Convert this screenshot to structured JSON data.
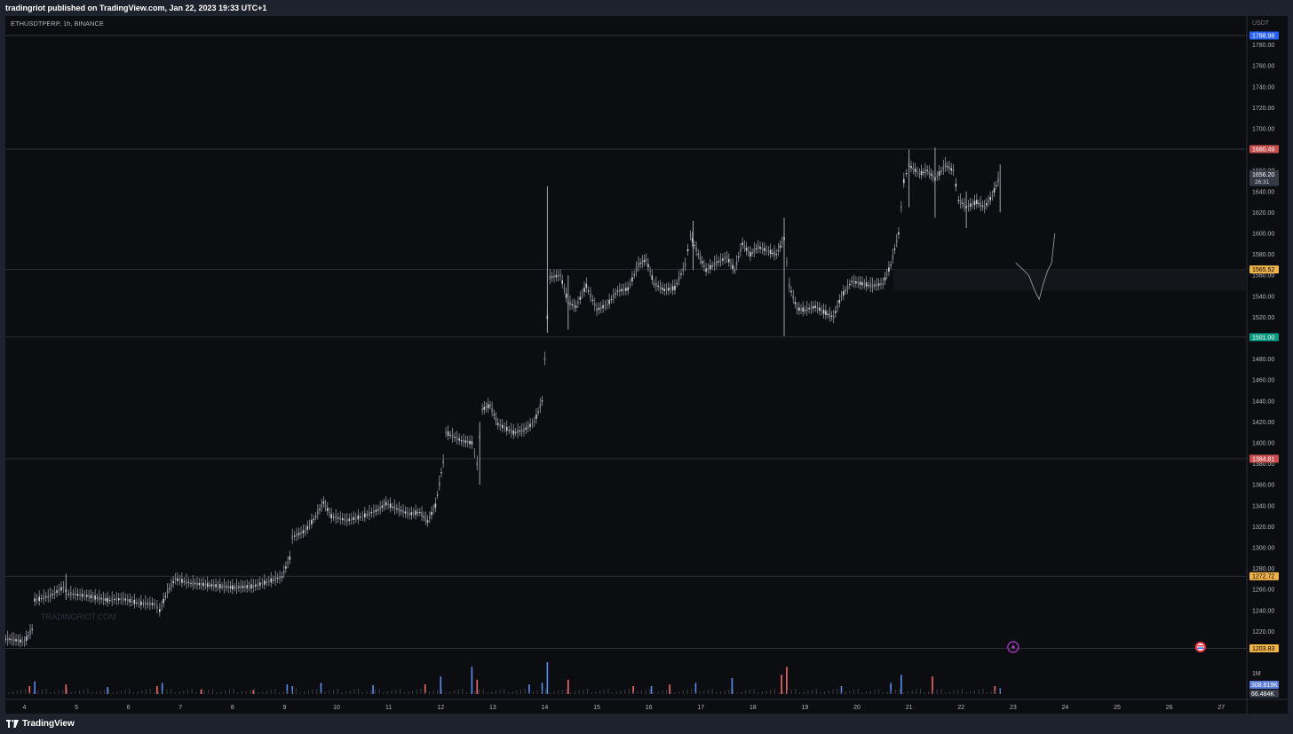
{
  "header": {
    "published_text": "tradingriot published on TradingView.com, Jan 22, 2023 19:33 UTC+1"
  },
  "footer": {
    "brand": "TradingView"
  },
  "chart_data": {
    "type": "candlestick",
    "symbol_label": "ETHUSDTPERP, 1h, BINANCE",
    "watermark": "TRADINGRIOT.COM",
    "currency": "USDT",
    "ylim": [
      1200,
      1800
    ],
    "y_ticks": [
      1220,
      1240,
      1260,
      1280,
      1300,
      1320,
      1340,
      1360,
      1380,
      1400,
      1420,
      1440,
      1460,
      1480,
      1500,
      1520,
      1540,
      1560,
      1580,
      1600,
      1620,
      1640,
      1660,
      1680,
      1700,
      1720,
      1740,
      1760,
      1780
    ],
    "x_ticks": [
      "4",
      "5",
      "6",
      "7",
      "8",
      "9",
      "10",
      "11",
      "12",
      "13",
      "14",
      "15",
      "16",
      "17",
      "18",
      "19",
      "20",
      "21",
      "22",
      "23",
      "24",
      "25",
      "26",
      "27"
    ],
    "x_range_days": [
      3.6,
      27.0
    ],
    "levels": [
      {
        "price": 1788.98,
        "label": "1788.98",
        "color": "#2962ff"
      },
      {
        "price": 1680.49,
        "label": "1680.49",
        "color": "#c94f4f"
      },
      {
        "price": 1565.52,
        "label": "1565.52",
        "color": "#f0b34a"
      },
      {
        "price": 1501.0,
        "label": "1501.00",
        "color": "#089981"
      },
      {
        "price": 1384.81,
        "label": "1384.81",
        "color": "#c94f4f"
      },
      {
        "price": 1272.72,
        "label": "1272.72",
        "color": "#f0b34a"
      },
      {
        "price": 1203.83,
        "label": "1203.83",
        "color": "#f0b34a"
      }
    ],
    "last_price": {
      "price": 1656.2,
      "label": "1656.20",
      "countdown": "26:31"
    },
    "volume": {
      "scale_label": "1M",
      "value_label": "308.619K",
      "ma_label": "66.484K"
    },
    "path_points": [
      [
        3.6,
        1213
      ],
      [
        3.8,
        1212
      ],
      [
        4.0,
        1210
      ],
      [
        4.15,
        1222
      ],
      [
        4.2,
        1250
      ],
      [
        4.5,
        1254
      ],
      [
        4.75,
        1262
      ],
      [
        4.85,
        1256
      ],
      [
        5.2,
        1254
      ],
      [
        5.6,
        1250
      ],
      [
        5.9,
        1251
      ],
      [
        6.2,
        1247
      ],
      [
        6.5,
        1246
      ],
      [
        6.6,
        1240
      ],
      [
        6.75,
        1258
      ],
      [
        6.9,
        1270
      ],
      [
        7.2,
        1266
      ],
      [
        7.6,
        1264
      ],
      [
        8.0,
        1262
      ],
      [
        8.4,
        1263
      ],
      [
        8.7,
        1268
      ],
      [
        8.95,
        1272
      ],
      [
        9.1,
        1290
      ],
      [
        9.15,
        1310
      ],
      [
        9.4,
        1316
      ],
      [
        9.6,
        1330
      ],
      [
        9.75,
        1343
      ],
      [
        9.9,
        1330
      ],
      [
        10.2,
        1326
      ],
      [
        10.5,
        1330
      ],
      [
        10.8,
        1336
      ],
      [
        10.95,
        1342
      ],
      [
        11.2,
        1336
      ],
      [
        11.4,
        1332
      ],
      [
        11.6,
        1334
      ],
      [
        11.75,
        1325
      ],
      [
        11.9,
        1340
      ],
      [
        12.05,
        1382
      ],
      [
        12.1,
        1410
      ],
      [
        12.4,
        1402
      ],
      [
        12.6,
        1400
      ],
      [
        12.7,
        1380
      ],
      [
        12.8,
        1432
      ],
      [
        12.95,
        1436
      ],
      [
        13.1,
        1418
      ],
      [
        13.4,
        1410
      ],
      [
        13.6,
        1412
      ],
      [
        13.8,
        1420
      ],
      [
        13.95,
        1440
      ],
      [
        14.05,
        1520
      ],
      [
        14.1,
        1558
      ],
      [
        14.3,
        1560
      ],
      [
        14.45,
        1534
      ],
      [
        14.6,
        1530
      ],
      [
        14.8,
        1550
      ],
      [
        15.0,
        1527
      ],
      [
        15.2,
        1532
      ],
      [
        15.4,
        1545
      ],
      [
        15.6,
        1547
      ],
      [
        15.8,
        1570
      ],
      [
        15.95,
        1575
      ],
      [
        16.1,
        1552
      ],
      [
        16.3,
        1546
      ],
      [
        16.5,
        1548
      ],
      [
        16.7,
        1570
      ],
      [
        16.8,
        1598
      ],
      [
        16.95,
        1580
      ],
      [
        17.1,
        1565
      ],
      [
        17.3,
        1572
      ],
      [
        17.5,
        1577
      ],
      [
        17.65,
        1565
      ],
      [
        17.8,
        1590
      ],
      [
        17.95,
        1580
      ],
      [
        18.1,
        1587
      ],
      [
        18.3,
        1583
      ],
      [
        18.45,
        1580
      ],
      [
        18.6,
        1595
      ],
      [
        18.7,
        1550
      ],
      [
        18.85,
        1528
      ],
      [
        19.0,
        1527
      ],
      [
        19.2,
        1530
      ],
      [
        19.4,
        1524
      ],
      [
        19.55,
        1520
      ],
      [
        19.7,
        1540
      ],
      [
        19.9,
        1554
      ],
      [
        20.1,
        1552
      ],
      [
        20.3,
        1550
      ],
      [
        20.5,
        1552
      ],
      [
        20.65,
        1570
      ],
      [
        20.8,
        1600
      ],
      [
        20.9,
        1650
      ],
      [
        21.0,
        1665
      ],
      [
        21.2,
        1657
      ],
      [
        21.35,
        1660
      ],
      [
        21.5,
        1652
      ],
      [
        21.7,
        1665
      ],
      [
        21.85,
        1660
      ],
      [
        21.95,
        1632
      ],
      [
        22.1,
        1625
      ],
      [
        22.3,
        1630
      ],
      [
        22.45,
        1625
      ],
      [
        22.6,
        1636
      ],
      [
        22.75,
        1656
      ]
    ],
    "wicks": [
      [
        4.8,
        1250,
        1275
      ],
      [
        12.75,
        1360,
        1420
      ],
      [
        14.05,
        1505,
        1645
      ],
      [
        14.45,
        1508,
        1560
      ],
      [
        16.85,
        1565,
        1612
      ],
      [
        18.6,
        1502,
        1615
      ],
      [
        21.0,
        1625,
        1680
      ],
      [
        21.5,
        1615,
        1682
      ],
      [
        22.1,
        1605,
        1640
      ],
      [
        22.75,
        1620,
        1666
      ]
    ],
    "volume_bars": [
      [
        4.1,
        0.25,
        "#f26b6b"
      ],
      [
        4.2,
        0.4,
        "#5b8def"
      ],
      [
        4.8,
        0.3,
        "#f26b6b"
      ],
      [
        5.6,
        0.22,
        "#5b8def"
      ],
      [
        6.55,
        0.25,
        "#f26b6b"
      ],
      [
        6.65,
        0.35,
        "#5b8def"
      ],
      [
        7.4,
        0.15,
        "#f26b6b"
      ],
      [
        8.4,
        0.12,
        "#f26b6b"
      ],
      [
        9.05,
        0.3,
        "#5b8def"
      ],
      [
        9.15,
        0.25,
        "#5b8def"
      ],
      [
        9.7,
        0.35,
        "#5b8def"
      ],
      [
        10.7,
        0.28,
        "#5b8def"
      ],
      [
        11.7,
        0.3,
        "#f26b6b"
      ],
      [
        12.0,
        0.55,
        "#5b8def"
      ],
      [
        12.6,
        0.85,
        "#5b8def"
      ],
      [
        12.7,
        0.45,
        "#f26b6b"
      ],
      [
        13.7,
        0.3,
        "#5b8def"
      ],
      [
        13.95,
        0.35,
        "#5b8def"
      ],
      [
        14.05,
        1.0,
        "#5b8def"
      ],
      [
        14.45,
        0.45,
        "#f26b6b"
      ],
      [
        15.7,
        0.25,
        "#f26b6b"
      ],
      [
        16.05,
        0.25,
        "#5b8def"
      ],
      [
        16.4,
        0.3,
        "#f26b6b"
      ],
      [
        16.9,
        0.35,
        "#5b8def"
      ],
      [
        17.6,
        0.5,
        "#5b8def"
      ],
      [
        18.55,
        0.6,
        "#f26b6b"
      ],
      [
        18.65,
        0.85,
        "#f26b6b"
      ],
      [
        19.7,
        0.25,
        "#5b8def"
      ],
      [
        20.65,
        0.35,
        "#5b8def"
      ],
      [
        20.85,
        0.6,
        "#5b8def"
      ],
      [
        21.45,
        0.55,
        "#f26b6b"
      ],
      [
        22.65,
        0.25,
        "#f26b6b"
      ],
      [
        22.75,
        0.18,
        "#5b8def"
      ]
    ],
    "drawing_path": [
      [
        23.05,
        1572
      ],
      [
        23.2,
        1565
      ],
      [
        23.3,
        1560
      ],
      [
        23.42,
        1545
      ],
      [
        23.5,
        1537
      ],
      [
        23.58,
        1552
      ],
      [
        23.66,
        1564
      ],
      [
        23.74,
        1572
      ],
      [
        23.8,
        1600
      ]
    ]
  }
}
